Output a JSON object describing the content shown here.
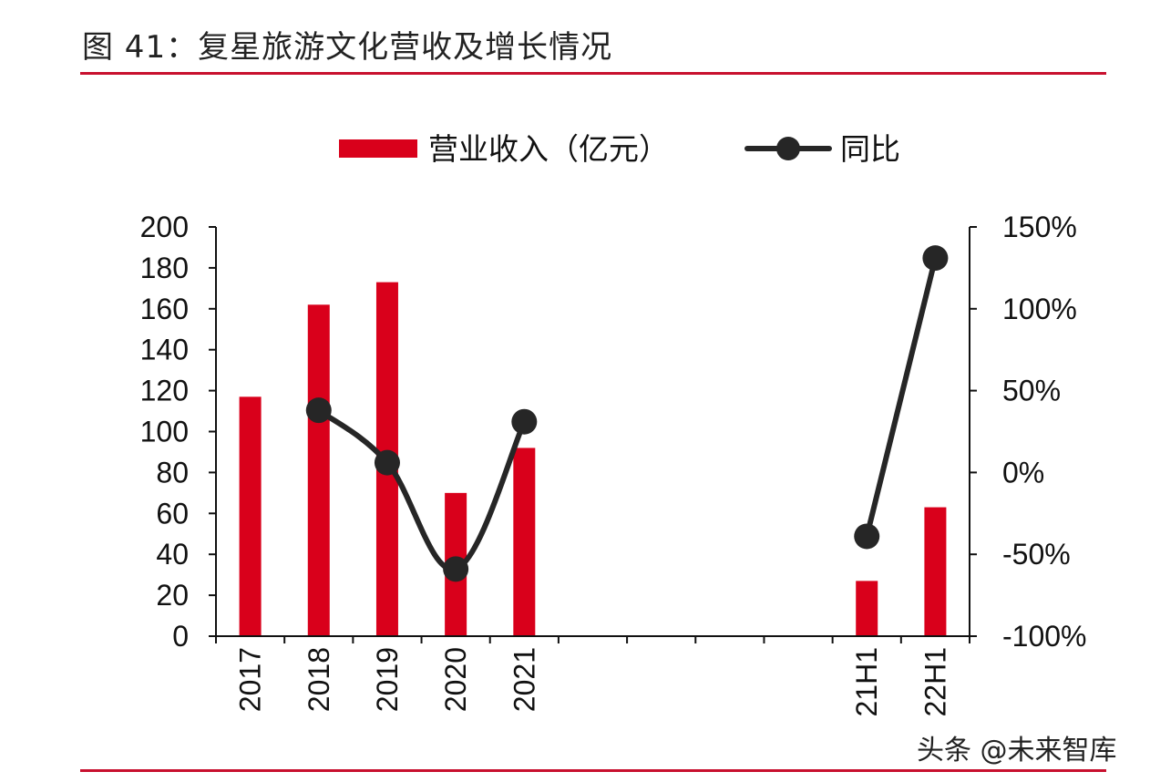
{
  "figure_title": "图 41：复星旅游文化营收及增长情况",
  "watermark": "头条 @未来智库",
  "colors": {
    "bar": "#d9001b",
    "line": "#262626",
    "rule": "#c8102e"
  },
  "chart_data": {
    "type": "bar",
    "categories": [
      "2017",
      "2018",
      "2019",
      "2020",
      "2021",
      "",
      "",
      "",
      "",
      "21H1",
      "22H1"
    ],
    "series": [
      {
        "name": "营业收入（亿元）",
        "type": "bar",
        "axis": "left",
        "values": [
          117,
          162,
          173,
          70,
          92,
          null,
          null,
          null,
          null,
          27,
          63
        ]
      },
      {
        "name": "同比",
        "type": "line",
        "axis": "right",
        "values": [
          null,
          38,
          6,
          -59,
          31,
          null,
          null,
          null,
          null,
          -39,
          131
        ]
      }
    ],
    "left_axis": {
      "ylim": [
        0,
        200
      ],
      "ticks": [
        "0",
        "20",
        "40",
        "60",
        "80",
        "100",
        "120",
        "140",
        "160",
        "180",
        "200"
      ]
    },
    "right_axis": {
      "ylim": [
        -100,
        150
      ],
      "ticks": [
        "-100%",
        "-50%",
        "0%",
        "50%",
        "100%",
        "150%"
      ]
    },
    "legend_position": "top-center",
    "grid": false
  }
}
